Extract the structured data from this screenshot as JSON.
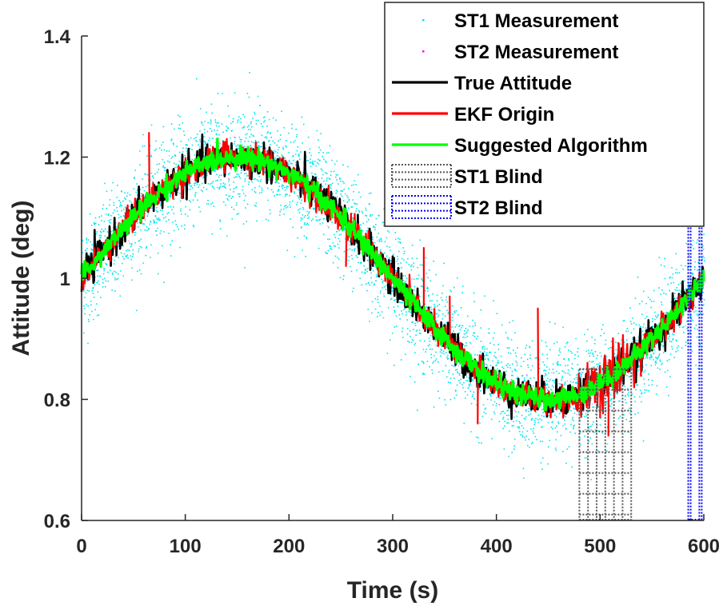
{
  "chart_data": {
    "type": "line",
    "title": "",
    "xlabel": "Time (s)",
    "ylabel": "Attitude (deg)",
    "xlim": [
      0,
      600
    ],
    "ylim": [
      0.6,
      1.4
    ],
    "xticks": [
      0,
      100,
      200,
      300,
      400,
      500,
      600
    ],
    "xtick_labels": [
      "0",
      "100",
      "200",
      "300",
      "400",
      "500",
      "600"
    ],
    "yticks": [
      0.6,
      0.8,
      1.0,
      1.2,
      1.4
    ],
    "ytick_labels": [
      "0.6",
      "0.8",
      "1",
      "1.2",
      "1.4"
    ],
    "grid": false,
    "legend_position": "top-right",
    "true_attitude_model": {
      "description": "sinusoid",
      "offset": 1.0,
      "amplitude": 0.2,
      "period_s": 600,
      "phase_deg": 0
    },
    "series": [
      {
        "name": "ST1 Measurement",
        "style": "dots",
        "color": "#00e5ee",
        "noise_std": 0.045
      },
      {
        "name": "ST2 Measurement",
        "style": "dots",
        "color": "#ff00ff",
        "noise_std": 0.045
      },
      {
        "name": "True Attitude",
        "style": "line",
        "color": "#000000",
        "noise_std": 0.015
      },
      {
        "name": "EKF Origin",
        "style": "line",
        "color": "#ff0000",
        "noise_std": 0.012
      },
      {
        "name": "Suggested Algorithm",
        "style": "line",
        "color": "#00ff00",
        "noise_std": 0.008
      }
    ],
    "blind_regions": [
      {
        "name": "ST1 Blind",
        "x_start": 480,
        "x_end": 530,
        "color": "#555555"
      },
      {
        "name": "ST2 Blind",
        "x_start": 585,
        "x_end": 598,
        "color": "#0000ff"
      }
    ],
    "ekf_spikes": [
      {
        "x": 12,
        "y": 1.05
      },
      {
        "x": 65,
        "y": 1.24
      },
      {
        "x": 140,
        "y": 1.23
      },
      {
        "x": 183,
        "y": 1.21
      },
      {
        "x": 232,
        "y": 1.12
      },
      {
        "x": 255,
        "y": 1.02
      },
      {
        "x": 330,
        "y": 1.05
      },
      {
        "x": 355,
        "y": 0.97
      },
      {
        "x": 382,
        "y": 0.76
      },
      {
        "x": 440,
        "y": 0.95
      },
      {
        "x": 495,
        "y": 0.85
      },
      {
        "x": 500,
        "y": 0.77
      },
      {
        "x": 508,
        "y": 0.74
      },
      {
        "x": 598,
        "y": 1.0
      }
    ]
  }
}
